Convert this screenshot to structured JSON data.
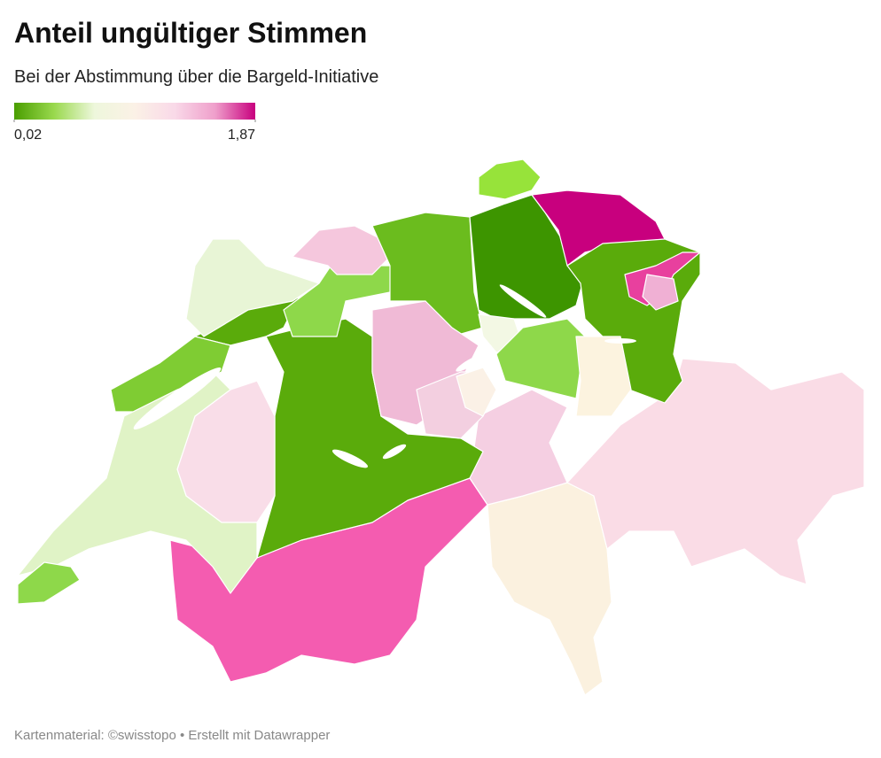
{
  "title": "Anteil ungültiger Stimmen",
  "subtitle": "Bei der Abstimmung über die Bargeld-Initiative",
  "legend": {
    "min": {
      "value": 0.02,
      "label": "0,02"
    },
    "max": {
      "value": 1.87,
      "label": "1,87"
    },
    "colors": [
      "#4a9e00",
      "#9ad94e",
      "#eef7dc",
      "#fbf1e6",
      "#f9d9e8",
      "#ef9fcb",
      "#c8007e"
    ]
  },
  "footer": "Kartenmaterial: ©swisstopo • Erstellt mit Datawrapper"
}
